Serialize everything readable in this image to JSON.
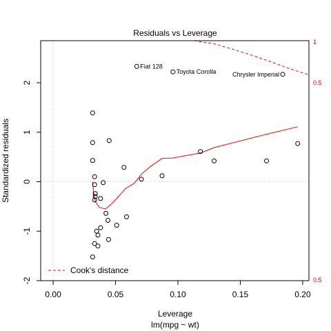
{
  "chart_data": {
    "type": "scatter",
    "title": "Residuals vs Leverage",
    "xlabel": "Leverage",
    "subtitle": "lm(mpg ~ wt)",
    "ylabel": "Standardized residuals",
    "xlim": [
      -0.01,
      0.205
    ],
    "ylim": [
      -2.0,
      2.85
    ],
    "x_ticks": [
      0.0,
      0.05,
      0.1,
      0.15,
      0.2
    ],
    "x_tick_labels": [
      "0.00",
      "0.05",
      "0.10",
      "0.15",
      "0.20"
    ],
    "y_ticks": [
      -2,
      -1,
      0,
      1,
      2
    ],
    "y_tick_labels": [
      "-2",
      "-1",
      "0",
      "1",
      "2"
    ],
    "colors": {
      "smoother": "#ff0000",
      "cooks": "#ff0000",
      "points": "#000000",
      "reference": "#bebebe"
    },
    "points": [
      {
        "x": 0.0316,
        "y": 1.39
      },
      {
        "x": 0.0316,
        "y": 0.79
      },
      {
        "x": 0.0316,
        "y": 0.43
      },
      {
        "x": 0.0332,
        "y": 0.1
      },
      {
        "x": 0.0332,
        "y": -0.06
      },
      {
        "x": 0.0337,
        "y": -0.24
      },
      {
        "x": 0.0337,
        "y": -0.3
      },
      {
        "x": 0.0332,
        "y": -0.37
      },
      {
        "x": 0.038,
        "y": -0.34
      },
      {
        "x": 0.0401,
        "y": -0.02
      },
      {
        "x": 0.0348,
        "y": -1.0
      },
      {
        "x": 0.0359,
        "y": -1.08
      },
      {
        "x": 0.0332,
        "y": -1.25
      },
      {
        "x": 0.0359,
        "y": -1.3
      },
      {
        "x": 0.0316,
        "y": -1.52
      },
      {
        "x": 0.038,
        "y": -0.93
      },
      {
        "x": 0.0423,
        "y": -0.64
      },
      {
        "x": 0.0439,
        "y": -0.78
      },
      {
        "x": 0.0444,
        "y": -1.17
      },
      {
        "x": 0.0449,
        "y": 0.83
      },
      {
        "x": 0.0567,
        "y": 0.29
      },
      {
        "x": 0.0509,
        "y": -0.88
      },
      {
        "x": 0.0588,
        "y": -0.71
      },
      {
        "x": 0.0707,
        "y": 0.05
      },
      {
        "x": 0.0873,
        "y": 0.12
      },
      {
        "x": 0.118,
        "y": 0.61
      },
      {
        "x": 0.129,
        "y": 0.42
      },
      {
        "x": 0.171,
        "y": 0.42
      },
      {
        "x": 0.196,
        "y": 0.77
      },
      {
        "x": 0.067,
        "y": 2.33
      },
      {
        "x": 0.096,
        "y": 2.22
      },
      {
        "x": 0.184,
        "y": 2.17
      }
    ],
    "point_labels": [
      {
        "text": "Fiat 128",
        "x": 0.067,
        "y": 2.33
      },
      {
        "text": "Toyota Corolla",
        "x": 0.096,
        "y": 2.22
      },
      {
        "text": "Chrysler Imperial",
        "x": 0.184,
        "y": 2.17
      }
    ],
    "smoother": [
      {
        "x": 0.0316,
        "y": 0.0
      },
      {
        "x": 0.0325,
        "y": -0.23
      },
      {
        "x": 0.0337,
        "y": -0.4
      },
      {
        "x": 0.037,
        "y": -0.52
      },
      {
        "x": 0.042,
        "y": -0.55
      },
      {
        "x": 0.048,
        "y": -0.42
      },
      {
        "x": 0.058,
        "y": -0.14
      },
      {
        "x": 0.065,
        "y": -0.03
      },
      {
        "x": 0.071,
        "y": 0.16
      },
      {
        "x": 0.078,
        "y": 0.31
      },
      {
        "x": 0.0873,
        "y": 0.47
      },
      {
        "x": 0.096,
        "y": 0.48
      },
      {
        "x": 0.118,
        "y": 0.58
      },
      {
        "x": 0.129,
        "y": 0.69
      },
      {
        "x": 0.171,
        "y": 0.96
      },
      {
        "x": 0.196,
        "y": 1.11
      }
    ],
    "cooks_distance": [
      {
        "level": "1",
        "values": [
          {
            "x": 0.113,
            "y": 2.85
          },
          {
            "x": 0.13,
            "y": 2.78
          },
          {
            "x": 0.145,
            "y": 2.67
          },
          {
            "x": 0.16,
            "y": 2.55
          },
          {
            "x": 0.175,
            "y": 2.42
          },
          {
            "x": 0.19,
            "y": 2.28
          },
          {
            "x": 0.205,
            "y": 2.16
          }
        ]
      },
      {
        "level": "0.5",
        "values": []
      }
    ],
    "legend": {
      "label": "Cook's distance",
      "position": "bottom-left"
    },
    "right_axis_labels": [
      "1",
      "0.5",
      "0.5"
    ],
    "grid": false
  }
}
